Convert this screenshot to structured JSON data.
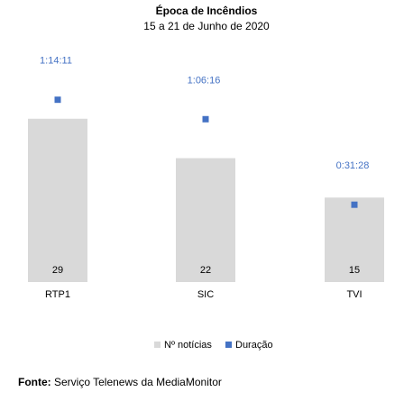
{
  "chart_data": {
    "type": "bar",
    "title": "Época de Incêndios",
    "subtitle": "15 a 21 de Junho de 2020",
    "categories": [
      "RTP1",
      "SIC",
      "TVI"
    ],
    "series": [
      {
        "name": "Nº notícias",
        "kind": "bar",
        "values": [
          29,
          22,
          15
        ],
        "color": "#d9d9d9"
      },
      {
        "name": "Duração",
        "kind": "marker",
        "values": [
          "1:14:11",
          "1:06:16",
          "0:31:28"
        ],
        "color": "#4472c4"
      }
    ],
    "ylim": [
      0,
      40
    ],
    "duration_ylim_seconds": [
      0,
      5500
    ],
    "legend_position": "bottom",
    "grid": false
  },
  "footer": {
    "source_label": "Fonte:",
    "source_text": " Serviço Telenews da MediaMonitor"
  }
}
